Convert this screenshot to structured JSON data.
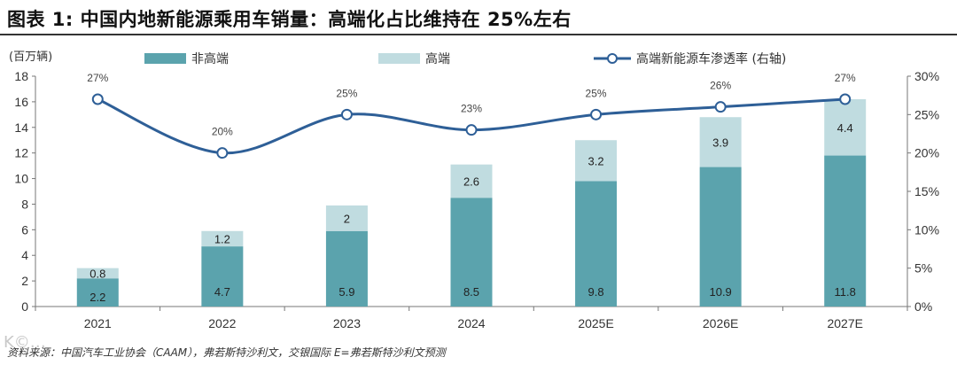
{
  "title": "图表 1: 中国内地新能源乘用车销量：高端化占比维持在 25%左右",
  "source": "资料来源：中国汽车工业协会（CAAM），弗若斯特沙利文，交银国际    E=弗若斯特沙利文预测",
  "watermark": "K©…",
  "colors": {
    "base": "#5ba3ad",
    "premium": "#c0dce0",
    "line": "#2e5f97"
  },
  "chart_data": {
    "type": "bar",
    "stacked": true,
    "ylabel": "(百万辆)",
    "categories": [
      "2021",
      "2022",
      "2023",
      "2024",
      "2025E",
      "2026E",
      "2027E"
    ],
    "series": [
      {
        "name": "非高端",
        "values": [
          2.2,
          4.7,
          5.9,
          8.5,
          9.8,
          10.9,
          11.8
        ]
      },
      {
        "name": "高端",
        "values": [
          0.8,
          1.2,
          2.0,
          2.6,
          3.2,
          3.9,
          4.4
        ]
      }
    ],
    "line_series": {
      "name": "高端新能源车渗透率 (右轴)",
      "values": [
        27,
        20,
        25,
        23,
        25,
        26,
        27
      ],
      "labels": [
        "27%",
        "20%",
        "25%",
        "23%",
        "25%",
        "26%",
        "27%"
      ]
    },
    "ylim": [
      0,
      18
    ],
    "y_ticks": [
      "0",
      "2",
      "4",
      "6",
      "8",
      "10",
      "12",
      "14",
      "16",
      "18"
    ],
    "y2lim": [
      0,
      30
    ],
    "y2_ticks": [
      "0%",
      "5%",
      "10%",
      "15%",
      "20%",
      "25%",
      "30%"
    ]
  }
}
